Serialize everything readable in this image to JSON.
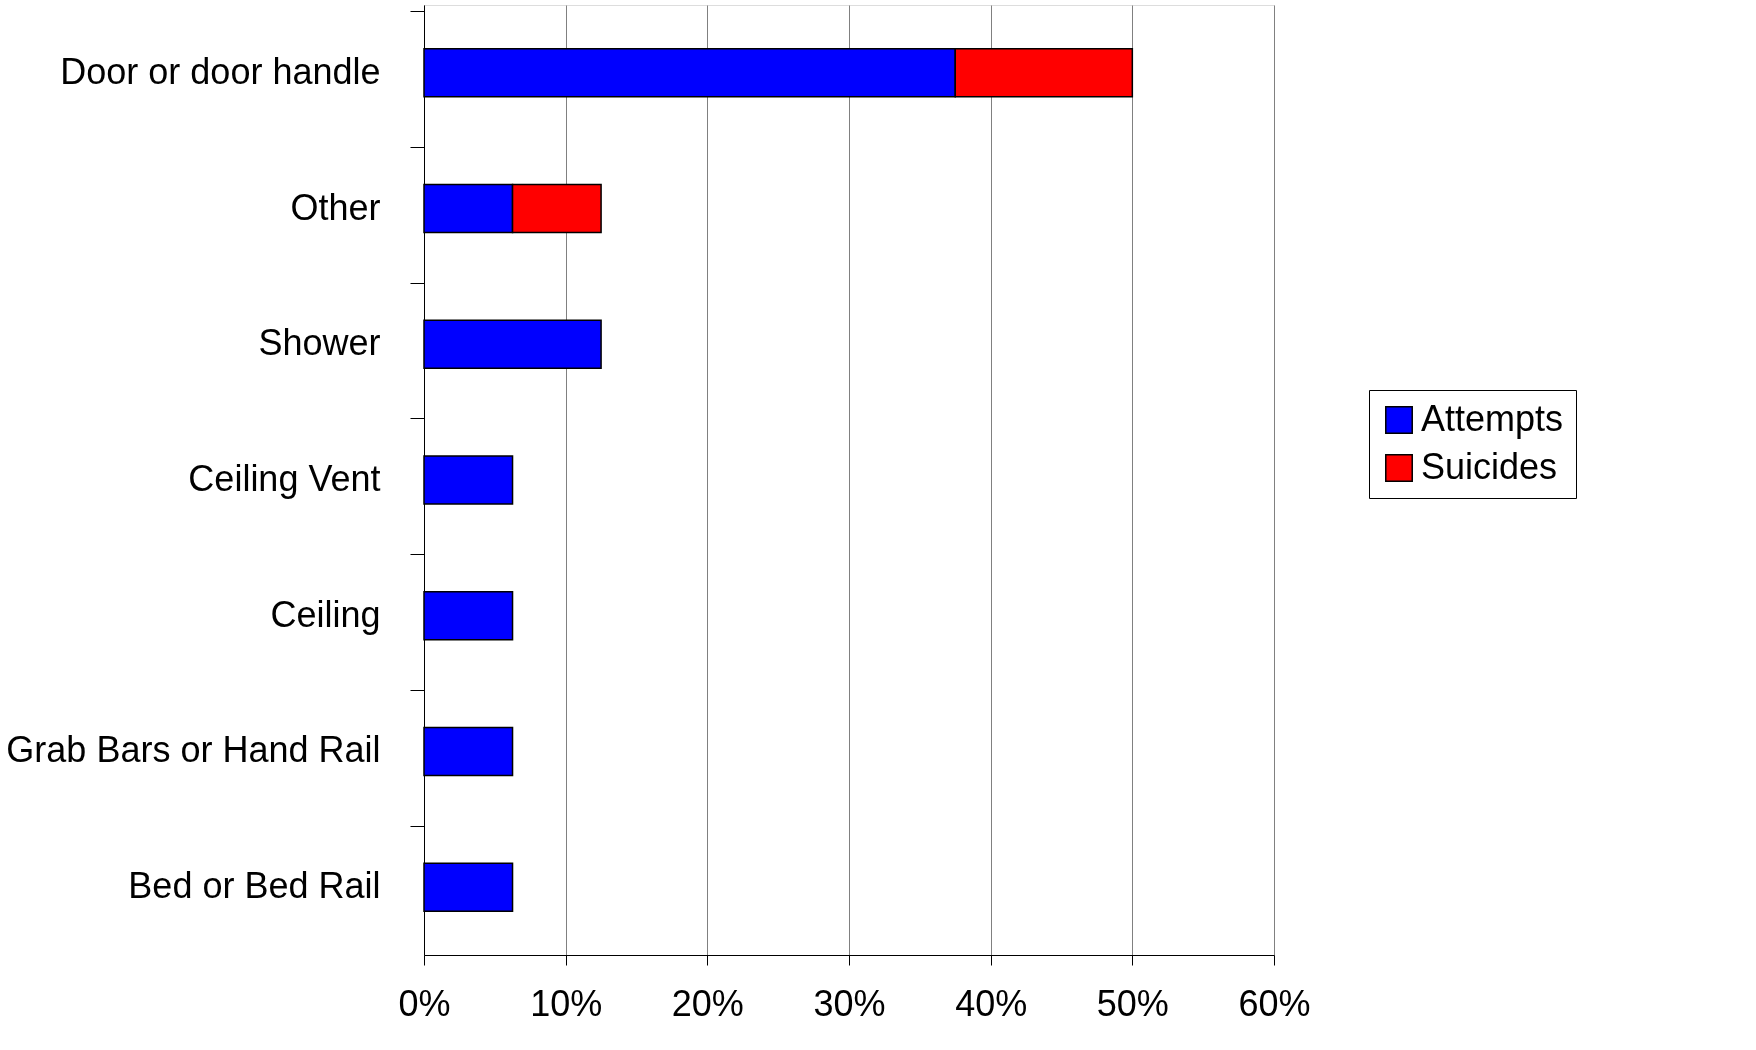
{
  "chart_data": {
    "type": "bar",
    "orientation": "horizontal",
    "stacked": true,
    "categories": [
      "Door or door handle",
      "Other",
      "Shower",
      "Ceiling Vent",
      "Ceiling",
      "Grab Bars or Hand Rail",
      "Bed or Bed Rail"
    ],
    "series": [
      {
        "name": "Attempts",
        "color": "#0000ff",
        "values": [
          37.5,
          6.25,
          12.5,
          6.25,
          6.25,
          6.25,
          6.25
        ]
      },
      {
        "name": "Suicides",
        "color": "#ff0000",
        "values": [
          12.5,
          6.25,
          null,
          null,
          null,
          null,
          null
        ]
      }
    ],
    "xlim": [
      0,
      60
    ],
    "xticks": [
      {
        "value": 0,
        "label": "0%"
      },
      {
        "value": 10,
        "label": "10%"
      },
      {
        "value": 20,
        "label": "20%"
      },
      {
        "value": 30,
        "label": "30%"
      },
      {
        "value": 40,
        "label": "40%"
      },
      {
        "value": 50,
        "label": "50%"
      },
      {
        "value": 60,
        "label": "60%"
      }
    ],
    "grid": "x",
    "legend": "right"
  }
}
